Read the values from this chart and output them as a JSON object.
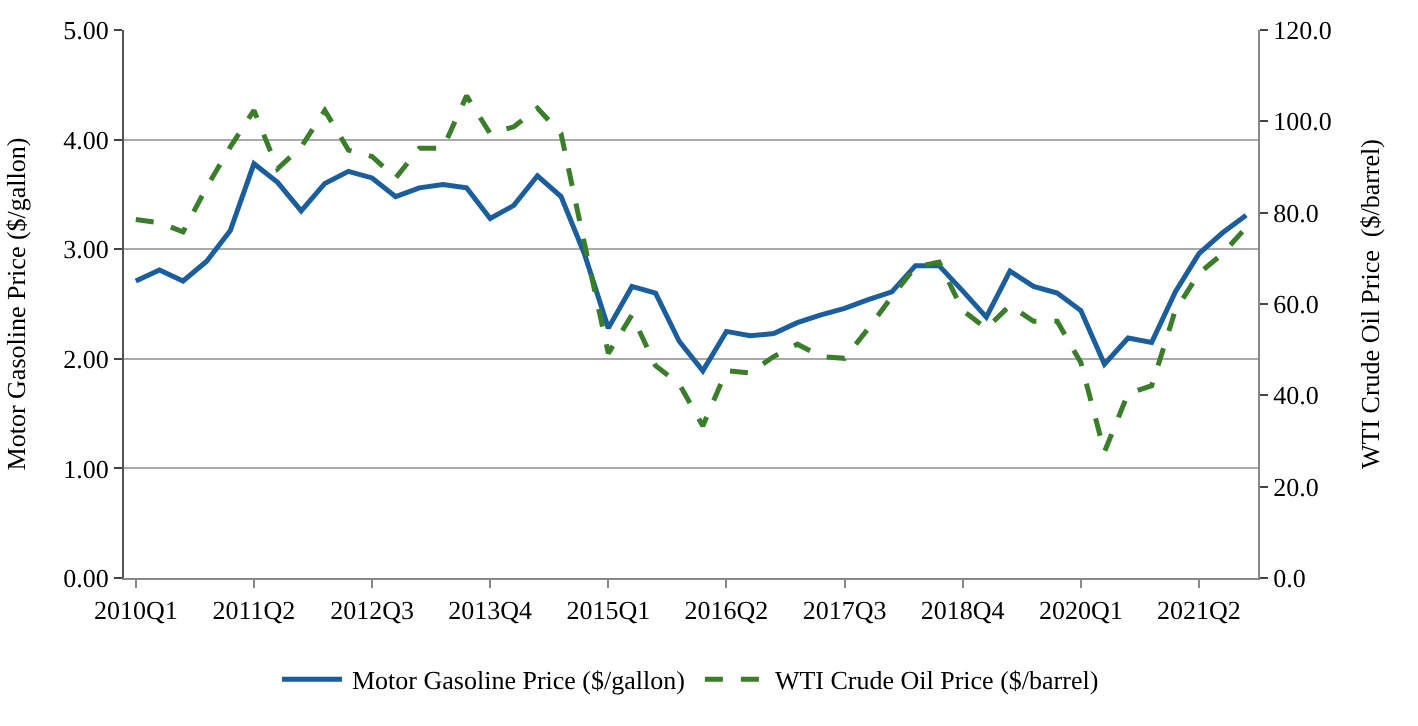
{
  "chart_data": {
    "type": "line",
    "ylabel": "Motor Gasoline Price ($/gallon)",
    "y2label": "WTI Crude Oil Price  ($/barrel)",
    "categories": [
      "2010Q1",
      null,
      null,
      null,
      null,
      "2011Q2",
      null,
      null,
      null,
      null,
      "2012Q3",
      null,
      null,
      null,
      null,
      "2013Q4",
      null,
      null,
      null,
      null,
      "2015Q1",
      null,
      null,
      null,
      null,
      "2016Q2",
      null,
      null,
      null,
      null,
      "2017Q3",
      null,
      null,
      null,
      null,
      "2018Q4",
      null,
      null,
      null,
      null,
      "2020Q1",
      null,
      null,
      null,
      null,
      "2021Q2",
      null,
      null
    ],
    "series": [
      {
        "name": "Motor Gasoline Price ($/gallon)",
        "color": "#1a5e9e",
        "line_style": "solid",
        "values": [
          2.71,
          2.81,
          2.71,
          2.89,
          3.17,
          3.78,
          3.61,
          3.35,
          3.6,
          3.71,
          3.65,
          3.48,
          3.56,
          3.59,
          3.56,
          3.28,
          3.4,
          3.67,
          3.48,
          2.95,
          2.28,
          2.66,
          2.6,
          2.16,
          1.89,
          2.25,
          2.21,
          2.23,
          2.33,
          2.4,
          2.46,
          2.54,
          2.61,
          2.85,
          2.85,
          2.62,
          2.38,
          2.8,
          2.66,
          2.6,
          2.44,
          1.95,
          2.19,
          2.15,
          2.61,
          2.96,
          3.15,
          3.31
        ]
      },
      {
        "name": "WTI Crude Oil Price ($/barrel)",
        "color": "#3a7d2a",
        "line_style": "dashed",
        "axis": "y2",
        "values": [
          78.5,
          77.8,
          75.8,
          85.6,
          94.4,
          102.4,
          89.6,
          94.4,
          102.4,
          93.7,
          92.3,
          87.6,
          94.1,
          94.1,
          105.6,
          97.3,
          98.8,
          102.9,
          97.3,
          73,
          49.2,
          57.6,
          46.5,
          42.5,
          33.3,
          45.4,
          44.9,
          48.5,
          51.2,
          48.5,
          48.1,
          54.6,
          61.6,
          68.1,
          69.2,
          58.6,
          54.6,
          59.7,
          56.2,
          56.2,
          47.2,
          27.6,
          40.4,
          42.1,
          58.6,
          66.7,
          71.0,
          76.8
        ]
      }
    ],
    "ylim": [
      0,
      5
    ],
    "yticks": [
      {
        "value": 0,
        "label": "0.00"
      },
      {
        "value": 1,
        "label": "1.00"
      },
      {
        "value": 2,
        "label": "2.00"
      },
      {
        "value": 3,
        "label": "3.00"
      },
      {
        "value": 4,
        "label": "4.00"
      },
      {
        "value": 5,
        "label": "5.00"
      }
    ],
    "y2lim": [
      0,
      120
    ],
    "y2ticks": [
      {
        "value": 0,
        "label": "0.0"
      },
      {
        "value": 20,
        "label": "20.0"
      },
      {
        "value": 40,
        "label": "40.0"
      },
      {
        "value": 60,
        "label": "60.0"
      },
      {
        "value": 80,
        "label": "80.0"
      },
      {
        "value": 100,
        "label": "100.0"
      },
      {
        "value": 120,
        "label": "120.0"
      }
    ],
    "grid": "y",
    "legend": "bottom",
    "marker": "none"
  }
}
